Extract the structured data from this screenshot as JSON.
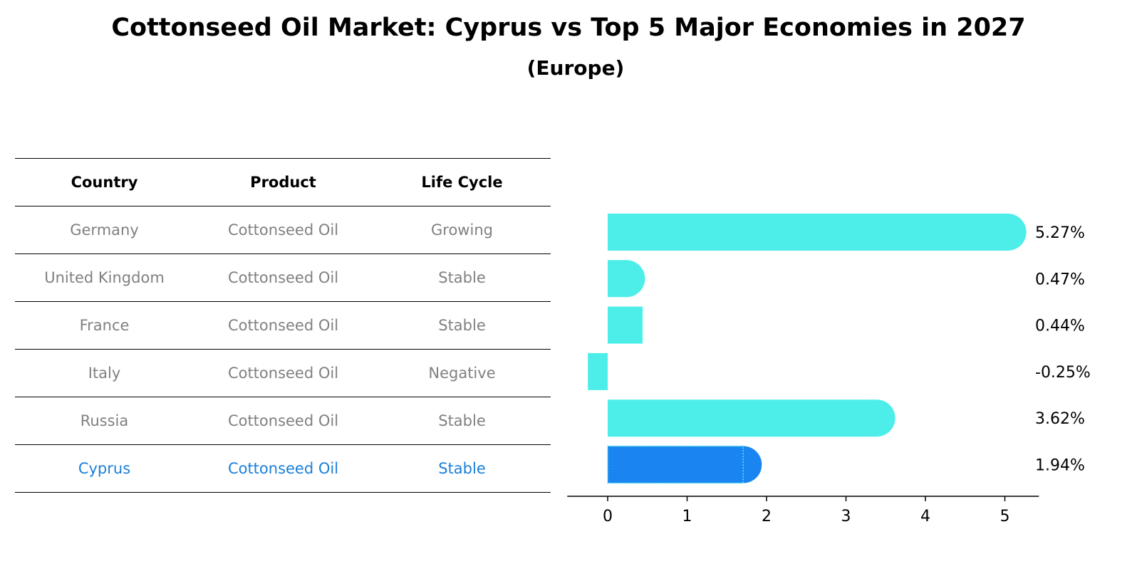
{
  "chart_data": {
    "type": "bar",
    "orientation": "horizontal",
    "title": "Cottonseed Oil Market: Cyprus vs Top 5 Major Economies in 2027",
    "subtitle": "(Europe)",
    "categories": [
      "Germany",
      "United Kingdom",
      "France",
      "Italy",
      "Russia",
      "Cyprus"
    ],
    "values": [
      5.27,
      0.47,
      0.44,
      -0.25,
      3.62,
      1.94
    ],
    "value_labels": [
      "5.27%",
      "0.47%",
      "0.44%",
      "-0.25%",
      "3.62%",
      "1.94%"
    ],
    "highlight": "Cyprus",
    "xlim": [
      -0.5,
      5.5
    ],
    "xticks": [
      0,
      1,
      2,
      3,
      4,
      5
    ],
    "xlabel": "",
    "ylabel": "",
    "grid": false,
    "colors": {
      "bar": "#4deeea",
      "highlight": "#1a85f0"
    }
  },
  "table": {
    "headers": [
      "Country",
      "Product",
      "Life Cycle"
    ],
    "rows": [
      [
        "Germany",
        "Cottonseed Oil",
        "Growing"
      ],
      [
        "United Kingdom",
        "Cottonseed Oil",
        "Stable"
      ],
      [
        "France",
        "Cottonseed Oil",
        "Stable"
      ],
      [
        "Italy",
        "Cottonseed Oil",
        "Negative"
      ],
      [
        "Russia",
        "Cottonseed Oil",
        "Stable"
      ],
      [
        "Cyprus",
        "Cottonseed Oil",
        "Stable"
      ]
    ]
  }
}
